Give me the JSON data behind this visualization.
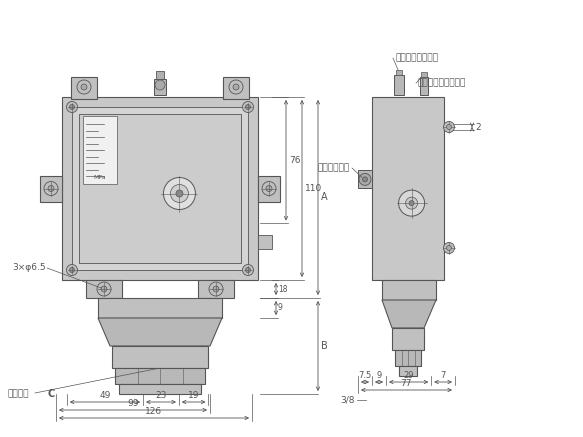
{
  "bg_color": "#ffffff",
  "line_color": "#555555",
  "fill_body": "#c8c8c8",
  "fill_panel": "#d8d8d8",
  "fill_inner": "#e4e4e4",
  "fill_dark": "#b0b0b0",
  "annotations": {
    "label_3x65": "3×φ6.5",
    "label_hex": "六角対辺",
    "label_hex_c": "C",
    "label_neon": "ネオンランプ",
    "label_ods_bolt": "応差調整用ボルト",
    "label_set_bolt": "設定圧力調整ボルト"
  },
  "dims_front": {
    "d49": "49",
    "d23": "23",
    "d19": "19",
    "d99": "99",
    "d126": "126",
    "d76": "76",
    "d110": "110",
    "d18": "18",
    "d9": "9",
    "dA": "A",
    "dB": "B"
  },
  "dims_side": {
    "d75": "7.5",
    "d9": "9",
    "d29": "29",
    "d7": "7",
    "d77": "77",
    "d38": "3/8",
    "d2": "2"
  }
}
